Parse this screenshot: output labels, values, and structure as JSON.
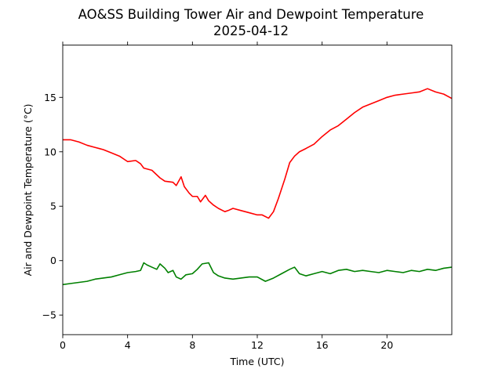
{
  "chart_data": {
    "type": "line",
    "title": "AO&SS Building Tower Air and Dewpoint Temperature",
    "subtitle": "2025-04-12",
    "xlabel": "Time (UTC)",
    "ylabel": "Air and Dewpoint Temperature (°C)",
    "xlim": [
      0,
      24
    ],
    "ylim": [
      -6.8,
      19.8
    ],
    "xticks": [
      0,
      4,
      8,
      12,
      16,
      20
    ],
    "yticks": [
      -5,
      0,
      5,
      10,
      15
    ],
    "grid": false,
    "legend": "none",
    "series": [
      {
        "color": "#ff0000",
        "x": [
          0,
          0.5,
          1,
          1.5,
          2,
          2.5,
          3,
          3.5,
          4,
          4.5,
          4.8,
          5,
          5.5,
          6,
          6.3,
          6.8,
          7,
          7.3,
          7.5,
          7.8,
          8,
          8.3,
          8.5,
          8.8,
          9,
          9.3,
          9.6,
          10,
          10.2,
          10.5,
          11,
          11.5,
          12,
          12.3,
          12.7,
          13,
          13.3,
          13.7,
          14,
          14.3,
          14.6,
          15,
          15.5,
          16,
          16.5,
          17,
          17.5,
          18,
          18.5,
          19,
          19.5,
          20,
          20.5,
          21,
          21.5,
          22,
          22.5,
          23,
          23.5,
          24
        ],
        "values": [
          11.1,
          11.1,
          10.9,
          10.6,
          10.4,
          10.2,
          9.9,
          9.6,
          9.1,
          9.2,
          8.9,
          8.5,
          8.3,
          7.6,
          7.3,
          7.2,
          6.9,
          7.7,
          6.8,
          6.2,
          5.9,
          5.9,
          5.4,
          6.0,
          5.5,
          5.1,
          4.8,
          4.5,
          4.6,
          4.8,
          4.6,
          4.4,
          4.2,
          4.2,
          3.9,
          4.5,
          5.7,
          7.5,
          9.0,
          9.6,
          10.0,
          10.3,
          10.7,
          11.4,
          12.0,
          12.4,
          13.0,
          13.6,
          14.1,
          14.4,
          14.7,
          15.0,
          15.2,
          15.3,
          15.4,
          15.5,
          15.8,
          15.5,
          15.3,
          14.9
        ]
      },
      {
        "color": "#008000",
        "x": [
          0,
          0.5,
          1,
          1.5,
          2,
          2.5,
          3,
          3.5,
          4,
          4.5,
          4.8,
          5,
          5.2,
          5.5,
          5.8,
          6,
          6.3,
          6.5,
          6.8,
          7,
          7.3,
          7.6,
          8,
          8.3,
          8.6,
          9,
          9.3,
          9.6,
          10,
          10.5,
          11,
          11.5,
          12,
          12.5,
          13,
          13.5,
          14,
          14.3,
          14.6,
          15,
          15.5,
          16,
          16.5,
          17,
          17.5,
          18,
          18.5,
          19,
          19.5,
          20,
          20.5,
          21,
          21.5,
          22,
          22.5,
          23,
          23.5,
          24
        ],
        "values": [
          -2.2,
          -2.1,
          -2.0,
          -1.9,
          -1.7,
          -1.6,
          -1.5,
          -1.3,
          -1.1,
          -1.0,
          -0.9,
          -0.2,
          -0.4,
          -0.6,
          -0.8,
          -0.3,
          -0.7,
          -1.1,
          -0.9,
          -1.5,
          -1.7,
          -1.3,
          -1.2,
          -0.8,
          -0.3,
          -0.2,
          -1.1,
          -1.4,
          -1.6,
          -1.7,
          -1.6,
          -1.5,
          -1.5,
          -1.9,
          -1.6,
          -1.2,
          -0.8,
          -0.6,
          -1.2,
          -1.4,
          -1.2,
          -1.0,
          -1.2,
          -0.9,
          -0.8,
          -1.0,
          -0.9,
          -1.0,
          -1.1,
          -0.9,
          -1.0,
          -1.1,
          -0.9,
          -1.0,
          -0.8,
          -0.9,
          -0.7,
          -0.6
        ]
      }
    ]
  }
}
